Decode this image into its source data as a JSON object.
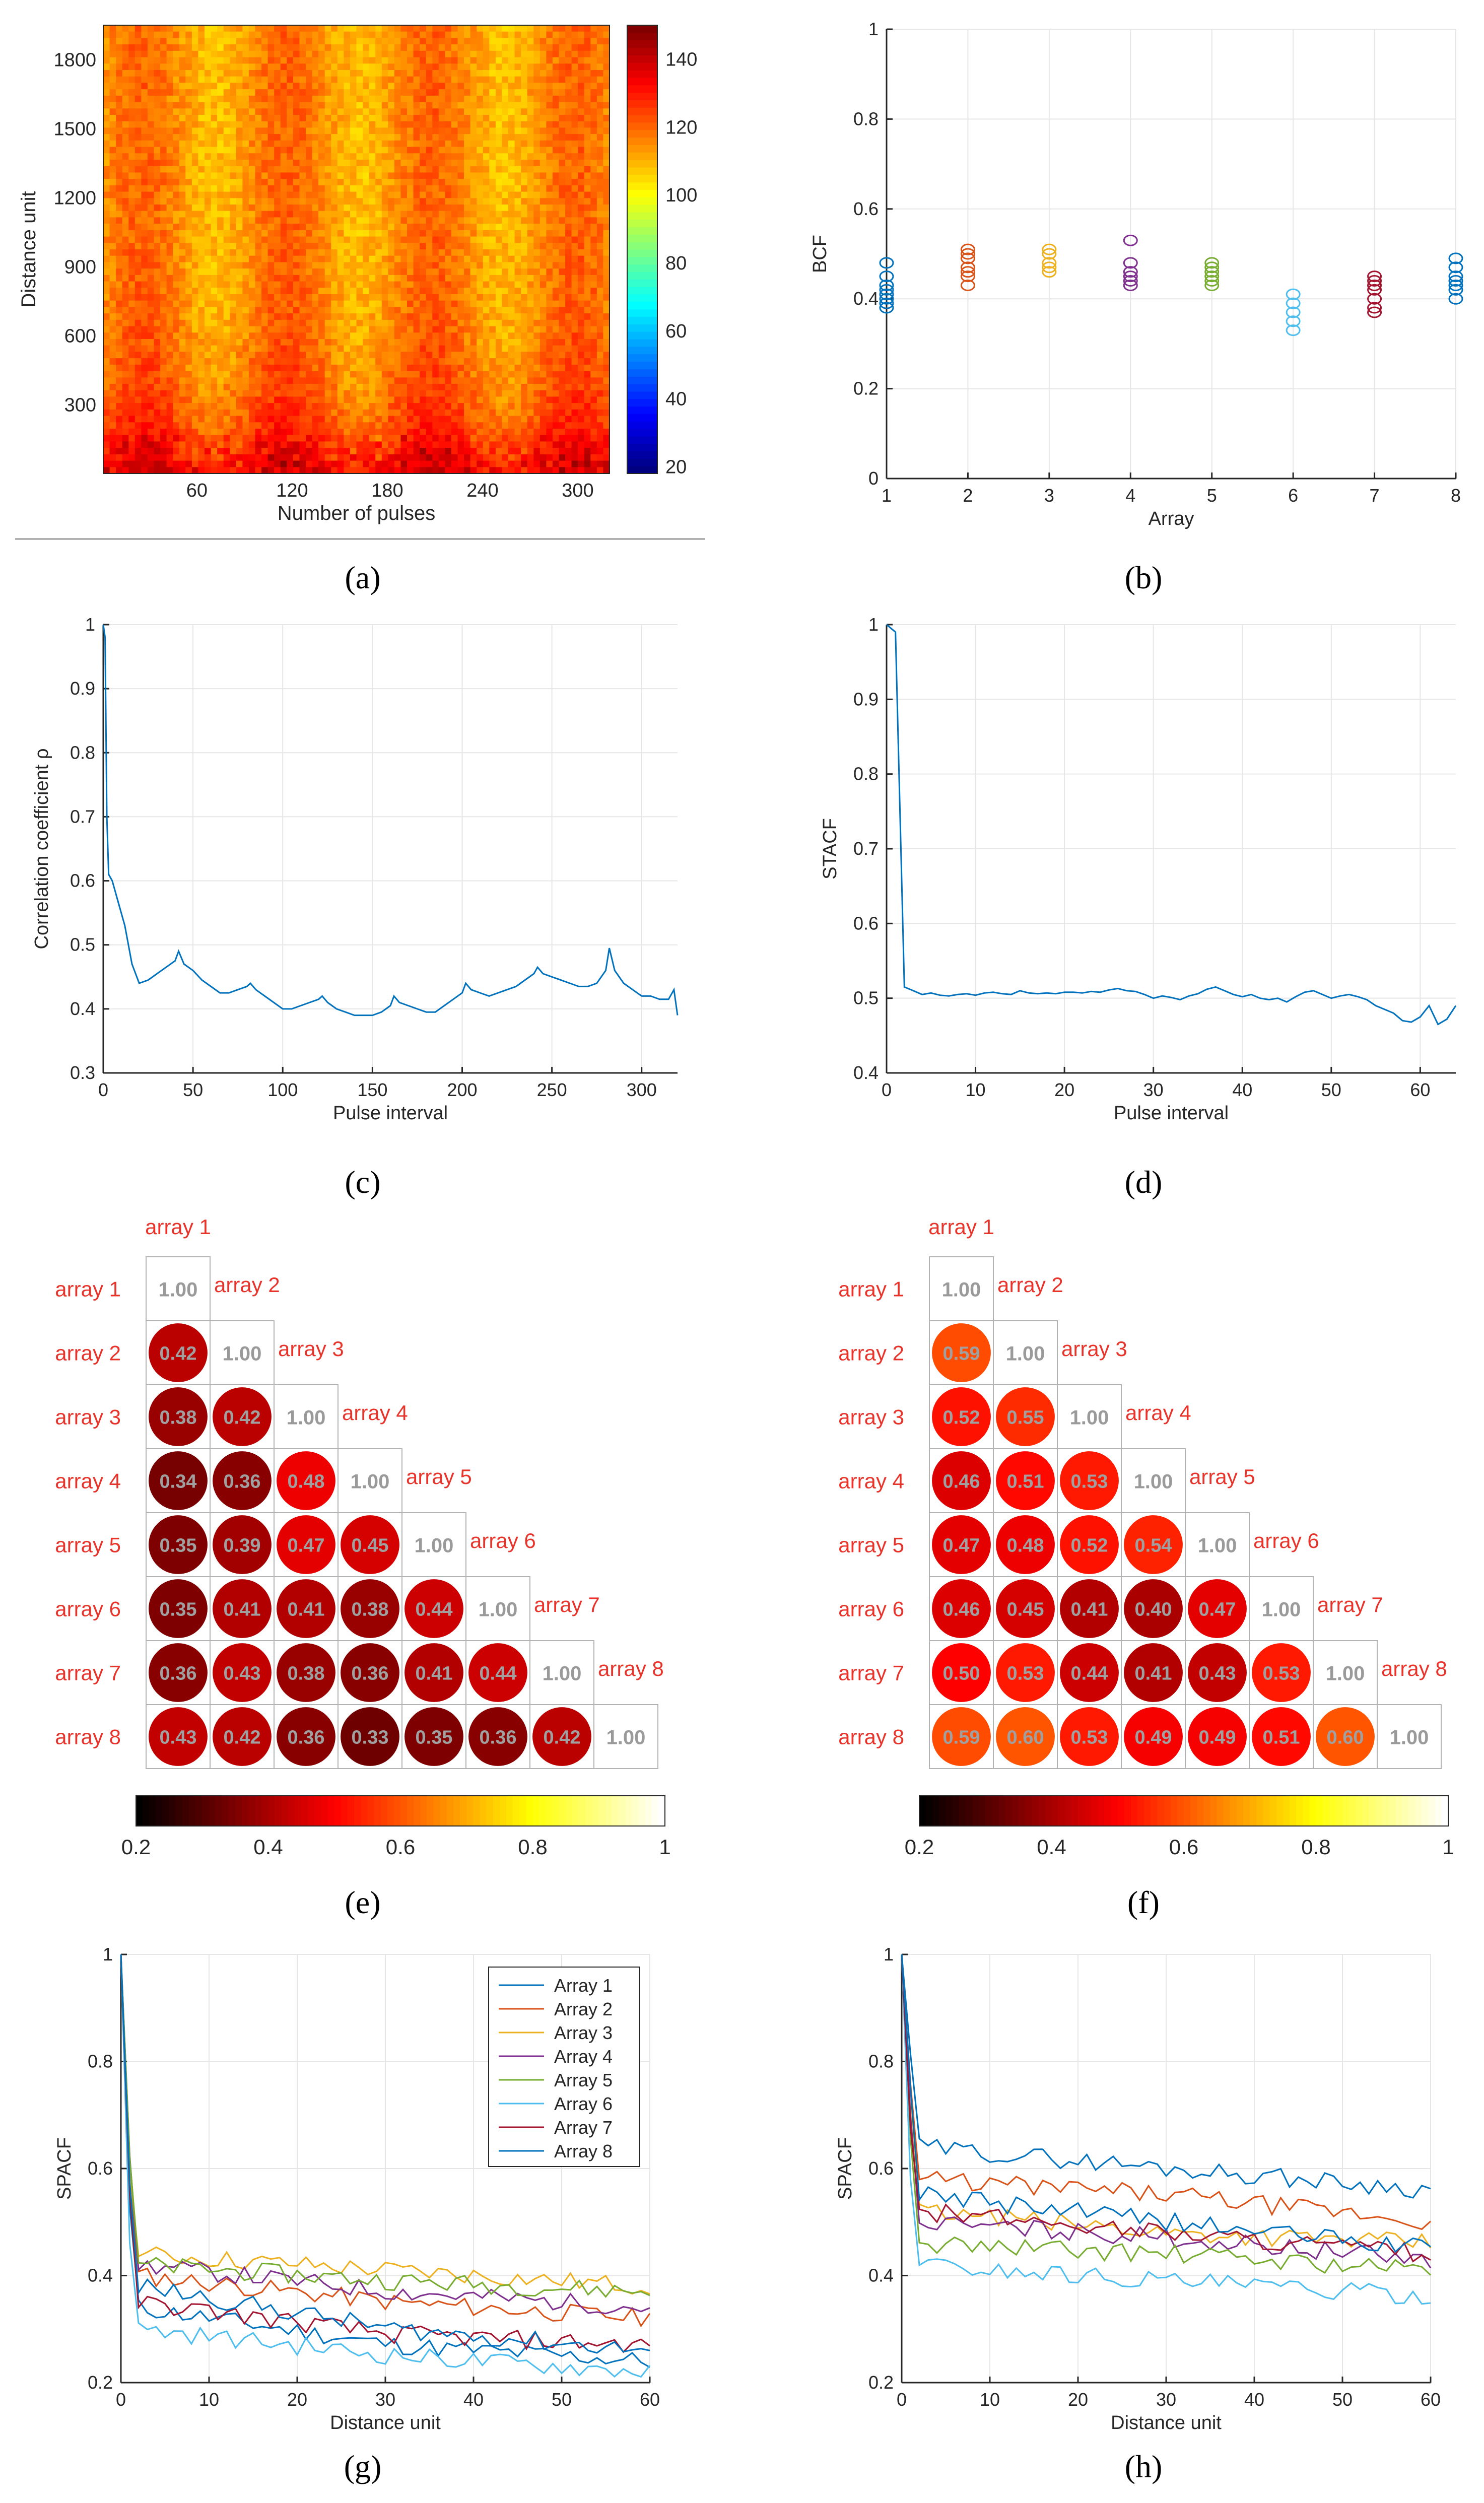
{
  "captions": {
    "a": "(a)",
    "b": "(b)",
    "c": "(c)",
    "d": "(d)",
    "e": "(e)",
    "f": "(f)",
    "g": "(g)",
    "h": "(h)"
  },
  "chart_data": [
    {
      "id": "a",
      "type": "heatmap",
      "title": "",
      "xlabel": "Number of pulses",
      "ylabel": "Distance unit",
      "x_ticks": [
        60,
        120,
        180,
        240,
        300
      ],
      "xlim": [
        1,
        320
      ],
      "y_ticks": [
        300,
        600,
        900,
        1200,
        1500,
        1800
      ],
      "ylim": [
        1,
        1950
      ],
      "colorbar_ticks": [
        20,
        40,
        60,
        80,
        100,
        120,
        140
      ],
      "clim": [
        18,
        150
      ],
      "colormap": "jet",
      "description_values": {
        "dominant_level": 115,
        "near_field_level": 135
      }
    },
    {
      "id": "b",
      "type": "scatter",
      "xlabel": "Array",
      "ylabel": "BCF",
      "x_ticks": [
        1,
        2,
        3,
        4,
        5,
        6,
        7,
        8
      ],
      "xlim": [
        1,
        8
      ],
      "y_ticks": [
        0,
        0.2,
        0.4,
        0.6,
        0.8,
        1
      ],
      "ylim": [
        0,
        1
      ],
      "series": [
        {
          "name": "Array 1",
          "x": 1,
          "color": "#0072BD",
          "values": [
            0.38,
            0.39,
            0.4,
            0.41,
            0.42,
            0.43,
            0.45,
            0.48
          ]
        },
        {
          "name": "Array 2",
          "x": 2,
          "color": "#D95319",
          "values": [
            0.43,
            0.45,
            0.46,
            0.47,
            0.49,
            0.5,
            0.51
          ]
        },
        {
          "name": "Array 3",
          "x": 3,
          "color": "#EDB120",
          "values": [
            0.46,
            0.47,
            0.48,
            0.5,
            0.51
          ]
        },
        {
          "name": "Array 4",
          "x": 4,
          "color": "#7E2F8E",
          "values": [
            0.43,
            0.44,
            0.45,
            0.46,
            0.48,
            0.53
          ]
        },
        {
          "name": "Array 5",
          "x": 5,
          "color": "#77AC30",
          "values": [
            0.43,
            0.44,
            0.45,
            0.46,
            0.47,
            0.48
          ]
        },
        {
          "name": "Array 6",
          "x": 6,
          "color": "#4DBEEE",
          "values": [
            0.33,
            0.35,
            0.37,
            0.39,
            0.41
          ]
        },
        {
          "name": "Array 7",
          "x": 7,
          "color": "#A2142F",
          "values": [
            0.37,
            0.38,
            0.4,
            0.42,
            0.43,
            0.44,
            0.45
          ]
        },
        {
          "name": "Array 8",
          "x": 8,
          "color": "#0072BD",
          "values": [
            0.4,
            0.42,
            0.43,
            0.44,
            0.45,
            0.47,
            0.49
          ]
        }
      ]
    },
    {
      "id": "c",
      "type": "line",
      "xlabel": "Pulse interval",
      "ylabel": "Correlation coefficient ρ",
      "x_ticks": [
        0,
        50,
        100,
        150,
        200,
        250,
        300
      ],
      "xlim": [
        0,
        320
      ],
      "y_ticks": [
        0.3,
        0.4,
        0.5,
        0.6,
        0.7,
        0.8,
        0.9,
        1
      ],
      "ylim": [
        0.3,
        1
      ],
      "color": "#0072BD",
      "x": [
        0,
        1,
        2,
        3,
        5,
        8,
        12,
        16,
        20,
        25,
        30,
        35,
        40,
        42,
        45,
        50,
        55,
        60,
        65,
        70,
        75,
        80,
        82,
        85,
        90,
        95,
        100,
        105,
        110,
        115,
        120,
        122,
        125,
        130,
        135,
        140,
        145,
        150,
        155,
        160,
        162,
        165,
        170,
        175,
        180,
        185,
        190,
        195,
        200,
        202,
        205,
        210,
        215,
        220,
        225,
        230,
        235,
        240,
        242,
        245,
        250,
        255,
        260,
        265,
        270,
        275,
        280,
        282,
        285,
        290,
        295,
        300,
        305,
        310,
        315,
        318,
        320
      ],
      "y": [
        1.0,
        0.98,
        0.7,
        0.61,
        0.6,
        0.57,
        0.53,
        0.47,
        0.44,
        0.445,
        0.455,
        0.465,
        0.475,
        0.49,
        0.47,
        0.46,
        0.445,
        0.435,
        0.425,
        0.425,
        0.43,
        0.435,
        0.44,
        0.43,
        0.42,
        0.41,
        0.4,
        0.4,
        0.405,
        0.41,
        0.415,
        0.42,
        0.41,
        0.4,
        0.395,
        0.39,
        0.39,
        0.39,
        0.395,
        0.405,
        0.42,
        0.41,
        0.405,
        0.4,
        0.395,
        0.395,
        0.405,
        0.415,
        0.425,
        0.44,
        0.43,
        0.425,
        0.42,
        0.425,
        0.43,
        0.435,
        0.445,
        0.455,
        0.465,
        0.455,
        0.45,
        0.445,
        0.44,
        0.435,
        0.435,
        0.44,
        0.46,
        0.495,
        0.46,
        0.44,
        0.43,
        0.42,
        0.42,
        0.415,
        0.415,
        0.43,
        0.39
      ]
    },
    {
      "id": "d",
      "type": "line",
      "xlabel": "Pulse interval",
      "ylabel": "STACF",
      "x_ticks": [
        0,
        10,
        20,
        30,
        40,
        50,
        60
      ],
      "xlim": [
        0,
        64
      ],
      "y_ticks": [
        0.4,
        0.5,
        0.6,
        0.7,
        0.8,
        0.9,
        1
      ],
      "ylim": [
        0.4,
        1
      ],
      "color": "#0072BD",
      "x": [
        0,
        1,
        2,
        3,
        4,
        5,
        6,
        7,
        8,
        9,
        10,
        11,
        12,
        13,
        14,
        15,
        16,
        17,
        18,
        19,
        20,
        21,
        22,
        23,
        24,
        25,
        26,
        27,
        28,
        29,
        30,
        31,
        32,
        33,
        34,
        35,
        36,
        37,
        38,
        39,
        40,
        41,
        42,
        43,
        44,
        45,
        46,
        47,
        48,
        49,
        50,
        51,
        52,
        53,
        54,
        55,
        56,
        57,
        58,
        59,
        60,
        61,
        62,
        63,
        64
      ],
      "y": [
        1.0,
        0.99,
        0.515,
        0.51,
        0.505,
        0.507,
        0.504,
        0.503,
        0.505,
        0.506,
        0.504,
        0.507,
        0.508,
        0.506,
        0.505,
        0.51,
        0.507,
        0.506,
        0.507,
        0.506,
        0.508,
        0.508,
        0.507,
        0.509,
        0.508,
        0.511,
        0.513,
        0.51,
        0.509,
        0.505,
        0.5,
        0.503,
        0.501,
        0.498,
        0.503,
        0.506,
        0.512,
        0.515,
        0.51,
        0.505,
        0.502,
        0.505,
        0.5,
        0.498,
        0.5,
        0.495,
        0.502,
        0.508,
        0.51,
        0.505,
        0.5,
        0.503,
        0.505,
        0.502,
        0.498,
        0.49,
        0.485,
        0.48,
        0.47,
        0.468,
        0.475,
        0.49,
        0.465,
        0.472,
        0.49
      ]
    },
    {
      "id": "e",
      "type": "heatmap",
      "labels": [
        "array 1",
        "array 2",
        "array 3",
        "array 4",
        "array 5",
        "array 6",
        "array 7",
        "array 8"
      ],
      "lower_triangle": [
        [
          "1.00"
        ],
        [
          "0.42",
          "1.00"
        ],
        [
          "0.38",
          "0.42",
          "1.00"
        ],
        [
          "0.34",
          "0.36",
          "0.48",
          "1.00"
        ],
        [
          "0.35",
          "0.39",
          "0.47",
          "0.45",
          "1.00"
        ],
        [
          "0.35",
          "0.41",
          "0.41",
          "0.38",
          "0.44",
          "1.00"
        ],
        [
          "0.36",
          "0.43",
          "0.38",
          "0.36",
          "0.41",
          "0.44",
          "1.00"
        ],
        [
          "0.43",
          "0.42",
          "0.36",
          "0.33",
          "0.35",
          "0.36",
          "0.42",
          "1.00"
        ]
      ],
      "colorbar_ticks": [
        "0.2",
        "0.4",
        "0.6",
        "0.8",
        "1"
      ],
      "clim": [
        0.2,
        1
      ],
      "colormap": "hot"
    },
    {
      "id": "f",
      "type": "heatmap",
      "labels": [
        "array 1",
        "array 2",
        "array 3",
        "array 4",
        "array 5",
        "array 6",
        "array 7",
        "array 8"
      ],
      "lower_triangle": [
        [
          "1.00"
        ],
        [
          "0.59",
          "1.00"
        ],
        [
          "0.52",
          "0.55",
          "1.00"
        ],
        [
          "0.46",
          "0.51",
          "0.53",
          "1.00"
        ],
        [
          "0.47",
          "0.48",
          "0.52",
          "0.54",
          "1.00"
        ],
        [
          "0.46",
          "0.45",
          "0.41",
          "0.40",
          "0.47",
          "1.00"
        ],
        [
          "0.50",
          "0.53",
          "0.44",
          "0.41",
          "0.43",
          "0.53",
          "1.00"
        ],
        [
          "0.59",
          "0.60",
          "0.53",
          "0.49",
          "0.49",
          "0.51",
          "0.60",
          "1.00"
        ]
      ],
      "colorbar_ticks": [
        "0.2",
        "0.4",
        "0.6",
        "0.8",
        "1"
      ],
      "clim": [
        0.2,
        1
      ],
      "colormap": "hot"
    },
    {
      "id": "g",
      "type": "line",
      "xlabel": "Distance unit",
      "ylabel": "SPACF",
      "x_ticks": [
        0,
        10,
        20,
        30,
        40,
        50,
        60
      ],
      "xlim": [
        0,
        60
      ],
      "y_ticks": [
        0.2,
        0.4,
        0.6,
        0.8,
        1
      ],
      "ylim": [
        0.2,
        1
      ],
      "legend": "top-right",
      "series": [
        {
          "name": "Array 1",
          "color": "#0072BD",
          "start": 0.34,
          "mid": 0.27,
          "end": 0.24
        },
        {
          "name": "Array 2",
          "color": "#D95319",
          "start": 0.4,
          "mid": 0.35,
          "end": 0.32
        },
        {
          "name": "Array 3",
          "color": "#EDB120",
          "start": 0.44,
          "mid": 0.41,
          "end": 0.38
        },
        {
          "name": "Array 4",
          "color": "#7E2F8E",
          "start": 0.42,
          "mid": 0.37,
          "end": 0.34
        },
        {
          "name": "Array 5",
          "color": "#77AC30",
          "start": 0.42,
          "mid": 0.39,
          "end": 0.37
        },
        {
          "name": "Array 6",
          "color": "#4DBEEE",
          "start": 0.3,
          "mid": 0.25,
          "end": 0.22
        },
        {
          "name": "Array 7",
          "color": "#A2142F",
          "start": 0.35,
          "mid": 0.29,
          "end": 0.27
        },
        {
          "name": "Array 8",
          "color": "#0072BD",
          "start": 0.38,
          "mid": 0.3,
          "end": 0.26
        }
      ]
    },
    {
      "id": "h",
      "type": "line",
      "xlabel": "Distance unit",
      "ylabel": "SPACF",
      "x_ticks": [
        0,
        10,
        20,
        30,
        40,
        50,
        60
      ],
      "xlim": [
        0,
        60
      ],
      "y_ticks": [
        0.2,
        0.4,
        0.6,
        0.8,
        1
      ],
      "ylim": [
        0.2,
        1
      ],
      "series": [
        {
          "name": "Array 1",
          "color": "#0072BD",
          "start": 0.64,
          "mid": 0.6,
          "end": 0.56
        },
        {
          "name": "Array 2",
          "color": "#D95319",
          "start": 0.58,
          "mid": 0.55,
          "end": 0.5
        },
        {
          "name": "Array 3",
          "color": "#EDB120",
          "start": 0.52,
          "mid": 0.48,
          "end": 0.46
        },
        {
          "name": "Array 4",
          "color": "#7E2F8E",
          "start": 0.5,
          "mid": 0.47,
          "end": 0.43
        },
        {
          "name": "Array 5",
          "color": "#77AC30",
          "start": 0.46,
          "mid": 0.44,
          "end": 0.41
        },
        {
          "name": "Array 6",
          "color": "#4DBEEE",
          "start": 0.42,
          "mid": 0.39,
          "end": 0.36
        },
        {
          "name": "Array 7",
          "color": "#A2142F",
          "start": 0.52,
          "mid": 0.48,
          "end": 0.44
        },
        {
          "name": "Array 8",
          "color": "#0072BD",
          "start": 0.55,
          "mid": 0.5,
          "end": 0.45
        }
      ]
    }
  ]
}
